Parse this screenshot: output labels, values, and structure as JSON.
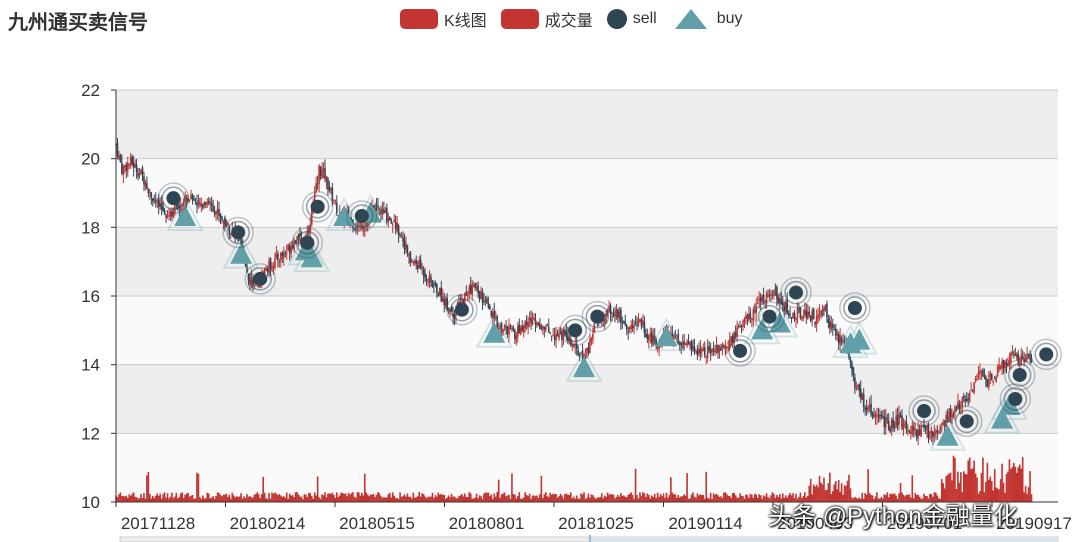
{
  "title": "九州通买卖信号",
  "legend": [
    {
      "label": "K线图",
      "color": "#c23531",
      "shape": "rect"
    },
    {
      "label": "成交量",
      "color": "#c23531",
      "shape": "rect"
    },
    {
      "label": "sell",
      "color": "#2f4554",
      "shape": "circle"
    },
    {
      "label": "buy",
      "color": "#61a0a8",
      "shape": "triangle"
    }
  ],
  "watermark": "头条 @Python金融量化",
  "chart_data": {
    "type": "candlestick",
    "title": "九州通买卖信号",
    "y_ticks": [
      10,
      12,
      14,
      16,
      18,
      20,
      22
    ],
    "ylim": [
      10,
      22
    ],
    "x_tick_labels": [
      "20171128",
      "20180214",
      "20180515",
      "20180801",
      "20181025",
      "20190114",
      "20190403",
      "20190701",
      "20190917"
    ],
    "grid": "alternating bands",
    "close_path": [
      [
        0,
        20.4
      ],
      [
        4,
        19.7
      ],
      [
        10,
        19.9
      ],
      [
        18,
        19.5
      ],
      [
        28,
        18.6
      ],
      [
        36,
        18.4
      ],
      [
        44,
        18.7
      ],
      [
        50,
        18.9
      ],
      [
        56,
        18.6
      ],
      [
        62,
        18.8
      ],
      [
        70,
        18.4
      ],
      [
        78,
        17.9
      ],
      [
        84,
        17.6
      ],
      [
        90,
        16.6
      ],
      [
        96,
        16.3
      ],
      [
        102,
        16.8
      ],
      [
        110,
        17.1
      ],
      [
        116,
        17.3
      ],
      [
        122,
        17.7
      ],
      [
        128,
        17.5
      ],
      [
        134,
        18.6
      ],
      [
        138,
        19.7
      ],
      [
        142,
        19.5
      ],
      [
        146,
        19.0
      ],
      [
        152,
        18.3
      ],
      [
        158,
        18.3
      ],
      [
        164,
        18.0
      ],
      [
        170,
        18.2
      ],
      [
        176,
        18.6
      ],
      [
        182,
        18.4
      ],
      [
        188,
        18.2
      ],
      [
        194,
        17.8
      ],
      [
        200,
        17.0
      ],
      [
        206,
        16.9
      ],
      [
        212,
        16.5
      ],
      [
        218,
        16.2
      ],
      [
        224,
        15.8
      ],
      [
        230,
        15.5
      ],
      [
        236,
        15.9
      ],
      [
        242,
        16.3
      ],
      [
        248,
        16.0
      ],
      [
        254,
        15.5
      ],
      [
        260,
        15.1
      ],
      [
        266,
        15.0
      ],
      [
        272,
        14.9
      ],
      [
        278,
        15.2
      ],
      [
        284,
        15.3
      ],
      [
        290,
        15.1
      ],
      [
        296,
        14.9
      ],
      [
        302,
        14.9
      ],
      [
        308,
        14.7
      ],
      [
        314,
        14.3
      ],
      [
        318,
        14.1
      ],
      [
        322,
        14.6
      ],
      [
        326,
        15.3
      ],
      [
        332,
        15.4
      ],
      [
        338,
        15.6
      ],
      [
        344,
        15.3
      ],
      [
        350,
        15.0
      ],
      [
        356,
        15.3
      ],
      [
        362,
        14.8
      ],
      [
        368,
        14.6
      ],
      [
        374,
        14.9
      ],
      [
        380,
        14.8
      ],
      [
        386,
        14.6
      ],
      [
        392,
        14.5
      ],
      [
        398,
        14.4
      ],
      [
        404,
        14.4
      ],
      [
        410,
        14.5
      ],
      [
        416,
        14.6
      ],
      [
        422,
        15.0
      ],
      [
        428,
        15.3
      ],
      [
        434,
        15.5
      ],
      [
        440,
        16.0
      ],
      [
        446,
        16.1
      ],
      [
        452,
        15.9
      ],
      [
        458,
        15.4
      ],
      [
        464,
        15.5
      ],
      [
        470,
        15.5
      ],
      [
        476,
        15.3
      ],
      [
        482,
        15.6
      ],
      [
        488,
        14.9
      ],
      [
        494,
        14.6
      ],
      [
        498,
        14.3
      ],
      [
        502,
        13.5
      ],
      [
        508,
        12.9
      ],
      [
        514,
        12.6
      ],
      [
        520,
        12.4
      ],
      [
        526,
        12.2
      ],
      [
        532,
        12.4
      ],
      [
        538,
        12.2
      ],
      [
        544,
        12.0
      ],
      [
        550,
        12.1
      ],
      [
        556,
        11.9
      ],
      [
        562,
        12.3
      ],
      [
        568,
        12.6
      ],
      [
        574,
        12.8
      ],
      [
        580,
        13.2
      ],
      [
        586,
        13.7
      ],
      [
        592,
        13.5
      ],
      [
        598,
        13.8
      ],
      [
        604,
        14.0
      ],
      [
        610,
        14.3
      ],
      [
        616,
        14.1
      ],
      [
        622,
        14.2
      ]
    ],
    "series": [
      {
        "name": "sell",
        "points": [
          [
            39,
            18.85
          ],
          [
            83,
            17.85
          ],
          [
            98,
            16.5
          ],
          [
            130,
            17.55
          ],
          [
            137,
            18.6
          ],
          [
            167,
            18.33
          ],
          [
            235,
            15.6
          ],
          [
            312,
            15.0
          ],
          [
            327,
            15.4
          ],
          [
            424,
            14.4
          ],
          [
            444,
            15.4
          ],
          [
            462,
            16.1
          ],
          [
            502,
            15.65
          ],
          [
            549,
            12.65
          ],
          [
            578,
            12.35
          ],
          [
            611,
            13.0
          ],
          [
            614,
            13.7
          ],
          [
            632,
            14.3
          ]
        ]
      },
      {
        "name": "buy",
        "points": [
          [
            47,
            18.3
          ],
          [
            85,
            17.2
          ],
          [
            129,
            17.3
          ],
          [
            133,
            17.1
          ],
          [
            155,
            18.3
          ],
          [
            173,
            18.4
          ],
          [
            257,
            14.9
          ],
          [
            318,
            13.9
          ],
          [
            374,
            14.8
          ],
          [
            439,
            15.0
          ],
          [
            451,
            15.2
          ],
          [
            499,
            14.6
          ],
          [
            505,
            14.7
          ],
          [
            565,
            11.9
          ],
          [
            602,
            12.4
          ],
          [
            607,
            12.8
          ]
        ]
      }
    ]
  }
}
